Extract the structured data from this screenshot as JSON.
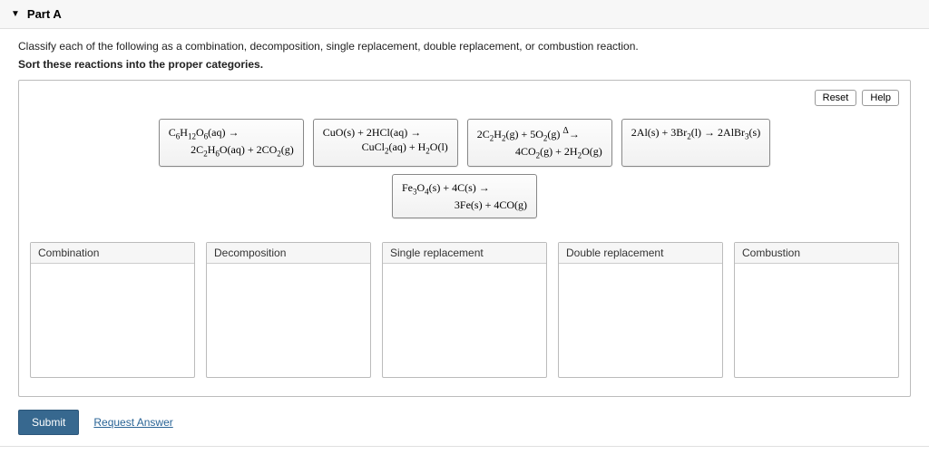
{
  "header": {
    "title": "Part A"
  },
  "instructions": {
    "line1": "Classify each of the following as a combination, decomposition, single replacement, double replacement, or combustion reaction.",
    "line2": "Sort these reactions into the proper categories."
  },
  "buttons": {
    "reset": "Reset",
    "help": "Help",
    "submit": "Submit",
    "request_answer": "Request Answer"
  },
  "tiles": {
    "row1": [
      {
        "line1_html": "C<sub>6</sub>H<sub>12</sub>O<sub>6</sub>(aq) &rarr;",
        "line2_html": "2C<sub>2</sub>H<sub>6</sub>O(aq) + 2CO<sub>2</sub>(g)"
      },
      {
        "line1_html": "CuO(s) + 2HCl(aq) &rarr;",
        "line2_html": "CuCl<sub>2</sub>(aq) + H<sub>2</sub>O(l)"
      },
      {
        "line1_html": "2C<sub>2</sub>H<sub>2</sub>(g) + 5O<sub>2</sub>(g) <sup>&Delta;</sup>&rarr;",
        "line2_html": "4CO<sub>2</sub>(g) + 2H<sub>2</sub>O(g)"
      },
      {
        "line1_html": "2Al(s) + 3Br<sub>2</sub>(l) &rarr; 2AlBr<sub>3</sub>(s)",
        "line2_html": ""
      }
    ],
    "row2": [
      {
        "line1_html": "Fe<sub>3</sub>O<sub>4</sub>(s) + 4C(s) &rarr;",
        "line2_html": "3Fe(s) + 4CO(g)"
      }
    ]
  },
  "bins": [
    {
      "label": "Combination"
    },
    {
      "label": "Decomposition"
    },
    {
      "label": "Single replacement"
    },
    {
      "label": "Double replacement"
    },
    {
      "label": "Combustion"
    }
  ],
  "style": {
    "accent_color": "#37688f",
    "border_color": "#bcbcbc",
    "bin_header_bg": "#f6f6f6",
    "tile_font": "Times New Roman"
  }
}
